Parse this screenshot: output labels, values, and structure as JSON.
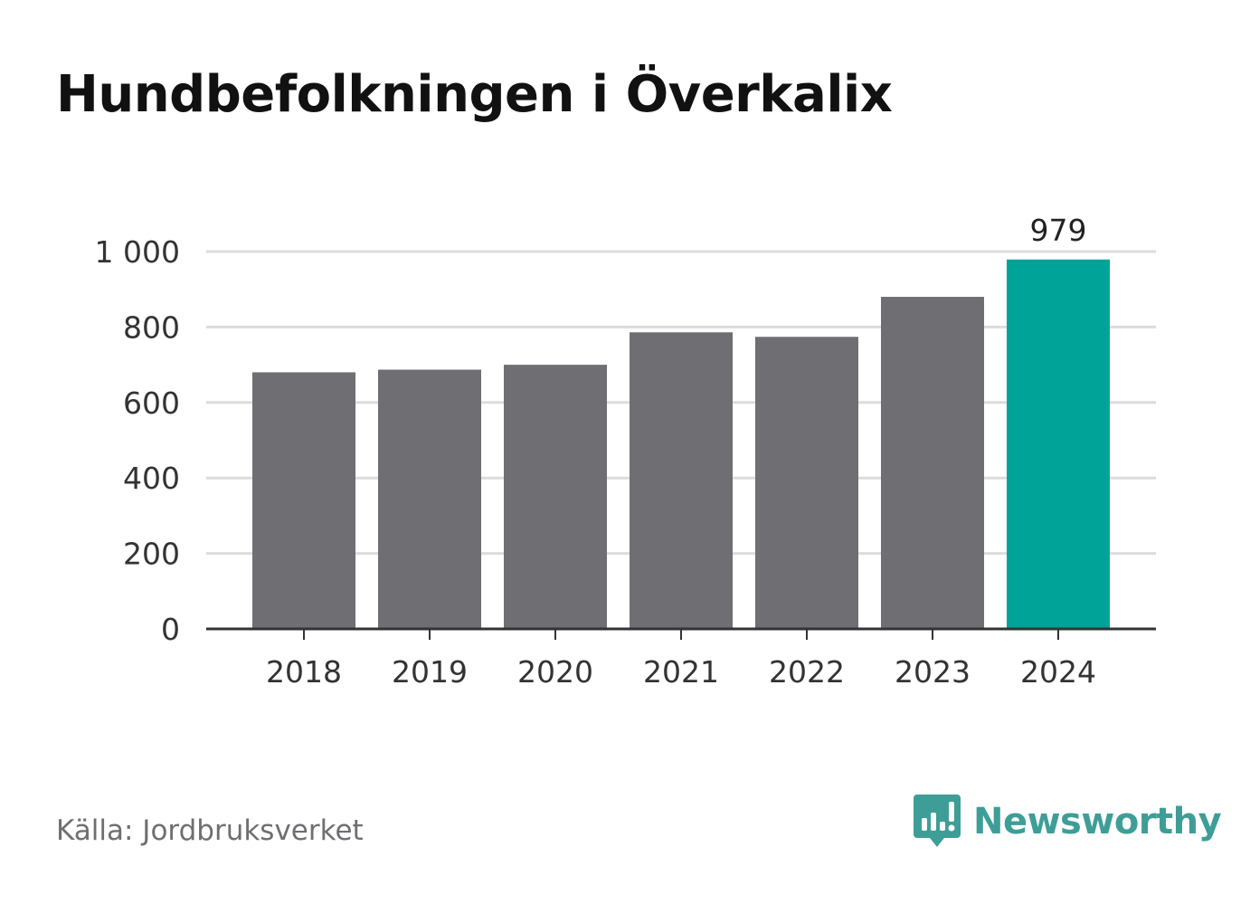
{
  "title": "Hundbefolkningen i Överkalix",
  "source": "Källa: Jordbruksverket",
  "brand": {
    "name": "Newsworthy",
    "icon": "bar-chart-speech-bubble-icon",
    "color": "#3e9e97"
  },
  "colors": {
    "bar": "#6f6e73",
    "highlight": "#00a398",
    "grid": "#dcdcdc",
    "axis": "#333333"
  },
  "chart_data": {
    "type": "bar",
    "title": "Hundbefolkningen i Överkalix",
    "categories": [
      "2018",
      "2019",
      "2020",
      "2021",
      "2022",
      "2023",
      "2024"
    ],
    "values": [
      680,
      687,
      700,
      786,
      774,
      880,
      979
    ],
    "ylim": [
      0,
      1000
    ],
    "yticks": [
      0,
      200,
      400,
      600,
      800,
      1000
    ],
    "ytick_labels": [
      "0",
      "200",
      "400",
      "600",
      "800",
      "1 000"
    ],
    "highlight_index": 6,
    "data_labels": [
      {
        "index": 6,
        "text": "979"
      }
    ],
    "grid": true,
    "legend": "none",
    "xlabel": "",
    "ylabel": ""
  }
}
